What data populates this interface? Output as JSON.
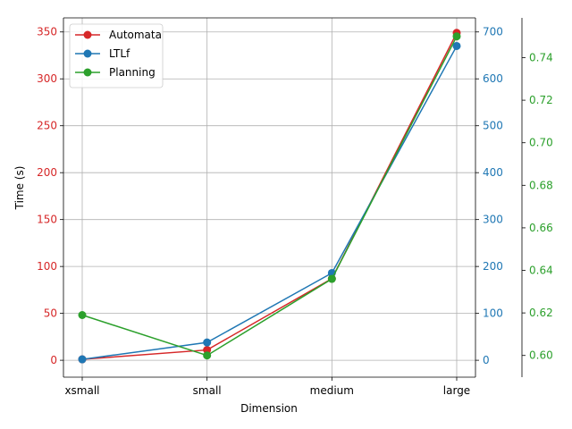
{
  "chart_data": {
    "type": "line",
    "xlabel": "Dimension",
    "categories": [
      "xsmall",
      "small",
      "medium",
      "large"
    ],
    "grid": true,
    "legend_position": "top-left",
    "axes": [
      {
        "id": "left",
        "label": "Time (s)",
        "color": "#d62728",
        "ylim": [
          -18,
          365
        ],
        "ticks": [
          0,
          50,
          100,
          150,
          200,
          250,
          300,
          350
        ],
        "tick_labels": [
          "0",
          "50",
          "100",
          "150",
          "200",
          "250",
          "300",
          "350"
        ]
      },
      {
        "id": "right1",
        "label": "",
        "color": "#1f77b4",
        "ylim": [
          -36,
          730
        ],
        "ticks": [
          0,
          100,
          200,
          300,
          400,
          500,
          600,
          700
        ],
        "tick_labels": [
          "0",
          "100",
          "200",
          "300",
          "400",
          "500",
          "600",
          "700"
        ]
      },
      {
        "id": "right2",
        "label": "",
        "color": "#2ca02c",
        "ylim": [
          0.5898,
          0.7587
        ],
        "ticks": [
          0.6,
          0.62,
          0.64,
          0.66,
          0.68,
          0.7,
          0.72,
          0.74
        ],
        "tick_labels": [
          "0.60",
          "0.62",
          "0.64",
          "0.66",
          "0.68",
          "0.70",
          "0.72",
          "0.74"
        ]
      }
    ],
    "series": [
      {
        "name": "Automata",
        "axis": "left",
        "color": "#d62728",
        "values": [
          1,
          11,
          87,
          349
        ]
      },
      {
        "name": "LTLf",
        "axis": "right1",
        "color": "#1f77b4",
        "values": [
          2,
          38,
          186,
          670
        ]
      },
      {
        "name": "Planning",
        "axis": "right2",
        "color": "#2ca02c",
        "values": [
          0.619,
          0.6,
          0.636,
          0.75
        ]
      }
    ]
  }
}
